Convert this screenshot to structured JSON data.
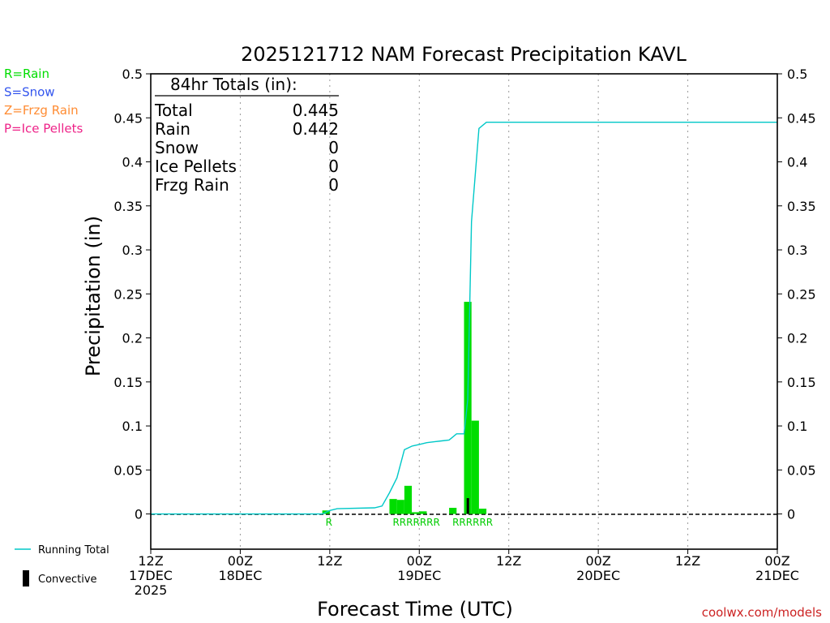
{
  "chart_data": {
    "type": "bar",
    "title": "2025121712 NAM Forecast Precipitation KAVL",
    "xlabel": "Forecast Time (UTC)",
    "ylabel": "Precipitation (in)",
    "ylim": [
      -0.04,
      0.5
    ],
    "xlim_hours": [
      0,
      84
    ],
    "y_ticks": [
      "0.5",
      "0.45",
      "0.4",
      "0.35",
      "0.3",
      "0.25",
      "0.2",
      "0.15",
      "0.1",
      "0.05",
      "0"
    ],
    "x_ticks": [
      {
        "line1": "12Z",
        "line2": "17DEC",
        "line3": "2025"
      },
      {
        "line1": "00Z",
        "line2": "18DEC",
        "line3": ""
      },
      {
        "line1": "12Z",
        "line2": "",
        "line3": ""
      },
      {
        "line1": "00Z",
        "line2": "19DEC",
        "line3": ""
      },
      {
        "line1": "12Z",
        "line2": "",
        "line3": ""
      },
      {
        "line1": "00Z",
        "line2": "20DEC",
        "line3": ""
      },
      {
        "line1": "12Z",
        "line2": "",
        "line3": ""
      },
      {
        "line1": "00Z",
        "line2": "21DEC",
        "line3": ""
      }
    ],
    "grid": "vertical-dotted",
    "series": [
      {
        "name": "Rain",
        "type": "bar",
        "color": "#00dd00",
        "x": [
          24,
          33,
          34,
          35,
          36,
          37,
          41,
          43,
          44,
          45
        ],
        "values": [
          0.004,
          0.017,
          0.016,
          0.032,
          0.002,
          0.003,
          0.007,
          0.241,
          0.106,
          0.006
        ]
      },
      {
        "name": "Convective",
        "type": "bar",
        "color": "#000000",
        "x": [
          43
        ],
        "values": [
          0.018
        ]
      },
      {
        "name": "Running Total",
        "type": "line",
        "color": "#00c8c8",
        "x": [
          0,
          23,
          23.5,
          24,
          25,
          30,
          31,
          32,
          33,
          34,
          35,
          36,
          37,
          38,
          39,
          40,
          41,
          42,
          42.5,
          43,
          44,
          45,
          84
        ],
        "values": [
          0,
          0,
          0.002,
          0.004,
          0.006,
          0.007,
          0.009,
          0.024,
          0.041,
          0.073,
          0.077,
          0.079,
          0.081,
          0.082,
          0.083,
          0.084,
          0.091,
          0.091,
          0.13,
          0.332,
          0.438,
          0.445,
          0.445
        ]
      }
    ],
    "ptype_labels": [
      {
        "x": 24,
        "text": "R"
      },
      {
        "x": 33,
        "text": "RRRRRRR"
      },
      {
        "x": 41,
        "text": "RRRRRR"
      }
    ],
    "totals_box": {
      "heading": "84hr Totals (in):",
      "rows": [
        {
          "label": "Total",
          "value": "0.445"
        },
        {
          "label": "Rain",
          "value": "0.442"
        },
        {
          "label": "Snow",
          "value": "0"
        },
        {
          "label": "Ice Pellets",
          "value": "0"
        },
        {
          "label": "Frzg Rain",
          "value": "0"
        }
      ]
    },
    "type_key": [
      {
        "text": "R=Rain",
        "color": "#00dd00"
      },
      {
        "text": "S=Snow",
        "color": "#3355ee"
      },
      {
        "text": "Z=Frzg Rain",
        "color": "#ff8c33"
      },
      {
        "text": "P=Ice Pellets",
        "color": "#ee2288"
      }
    ],
    "legend": [
      {
        "text": "Running Total",
        "kind": "line",
        "color": "#00c8c8"
      },
      {
        "text": "Convective",
        "kind": "bar",
        "color": "#000000"
      }
    ],
    "credit": "coolwx.com/models"
  }
}
